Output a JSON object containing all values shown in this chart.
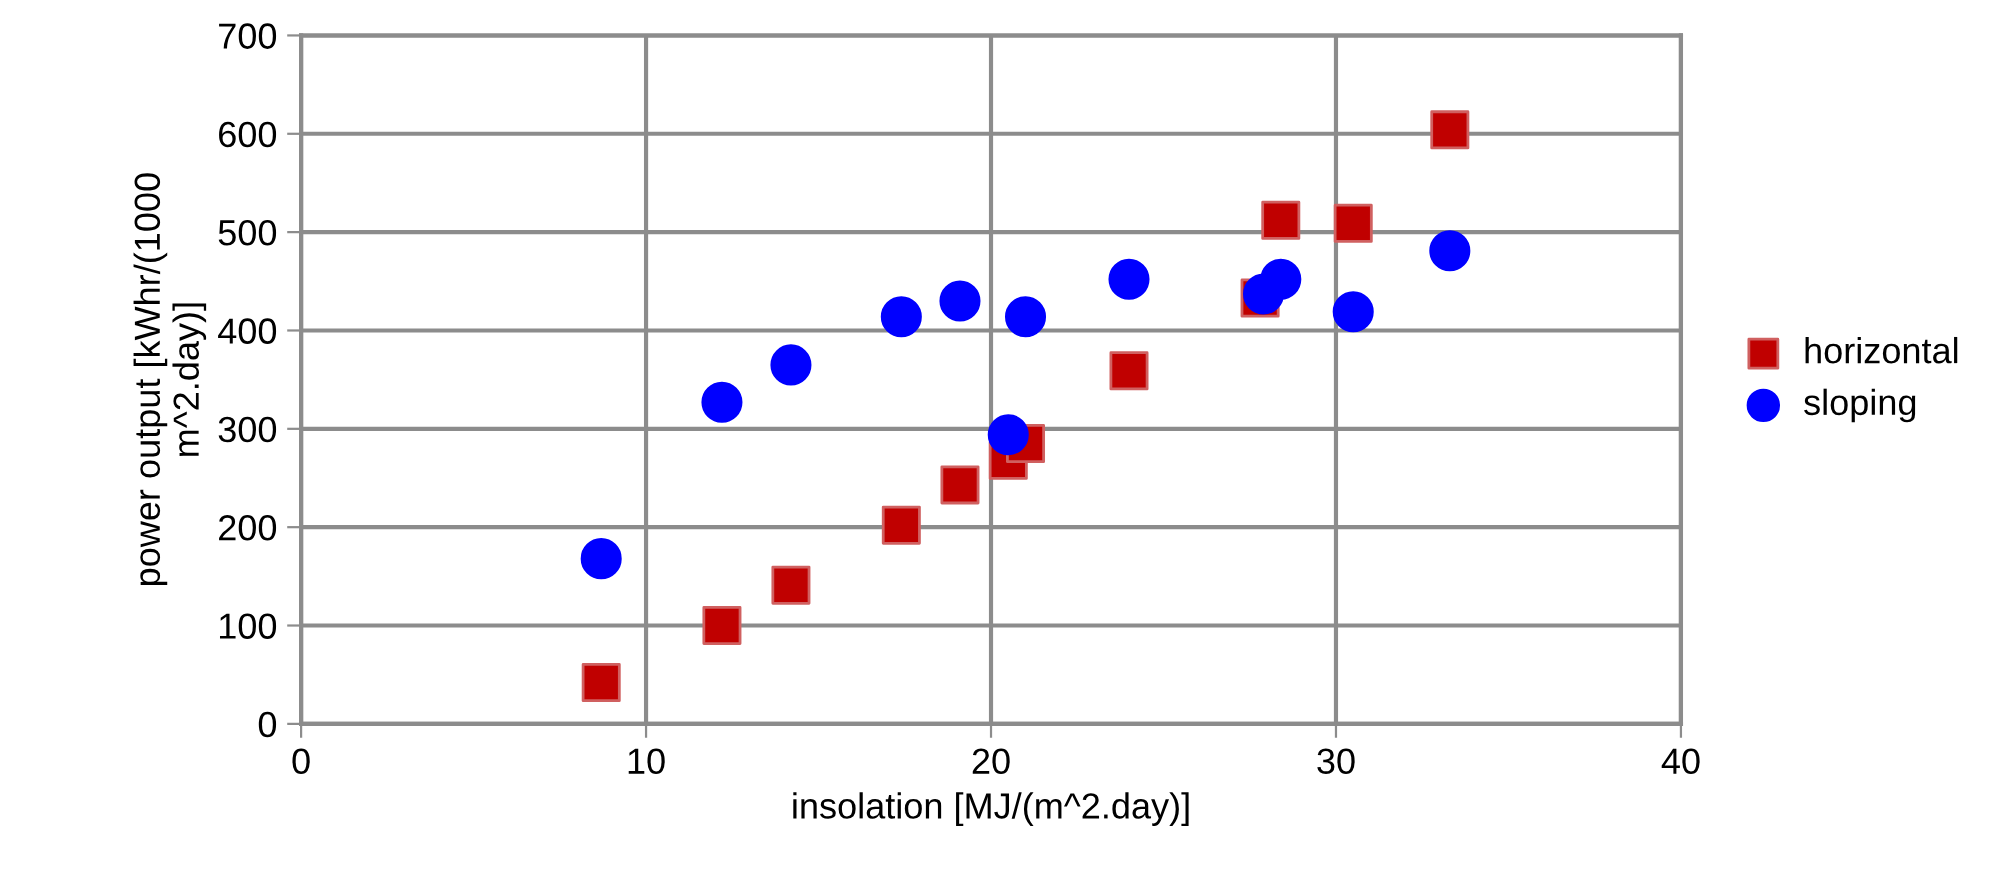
{
  "chart_data": {
    "type": "scatter",
    "xlabel": "insolation [MJ/(m^2.day)]",
    "ylabel": "power output [kWhr/(1000\nm^2.day)]",
    "x": [
      8.7,
      12.2,
      14.2,
      17.4,
      19.1,
      20.5,
      21.0,
      24.0,
      27.9,
      28.4,
      30.5,
      33.3
    ],
    "xlim": [
      0,
      40
    ],
    "xticks": [
      0,
      10,
      20,
      30,
      40
    ],
    "ylim": [
      0,
      700
    ],
    "yticks": [
      0,
      100,
      200,
      300,
      400,
      500,
      600,
      700
    ],
    "grid": true,
    "legend": "right",
    "series": [
      {
        "name": "horizontal",
        "color": "#c00000",
        "marker": "square",
        "x": [
          8.7,
          12.2,
          14.2,
          17.4,
          19.1,
          20.5,
          21.0,
          24.0,
          27.8,
          28.4,
          30.5,
          33.3
        ],
        "values": [
          42,
          100,
          141,
          202,
          243,
          268,
          285,
          359,
          433,
          512,
          509,
          604
        ]
      },
      {
        "name": "sloping",
        "color": "#0000ff",
        "marker": "circle",
        "values": [
          168,
          327,
          365,
          414,
          430,
          294,
          414,
          452,
          437,
          452,
          419,
          481
        ]
      }
    ]
  }
}
